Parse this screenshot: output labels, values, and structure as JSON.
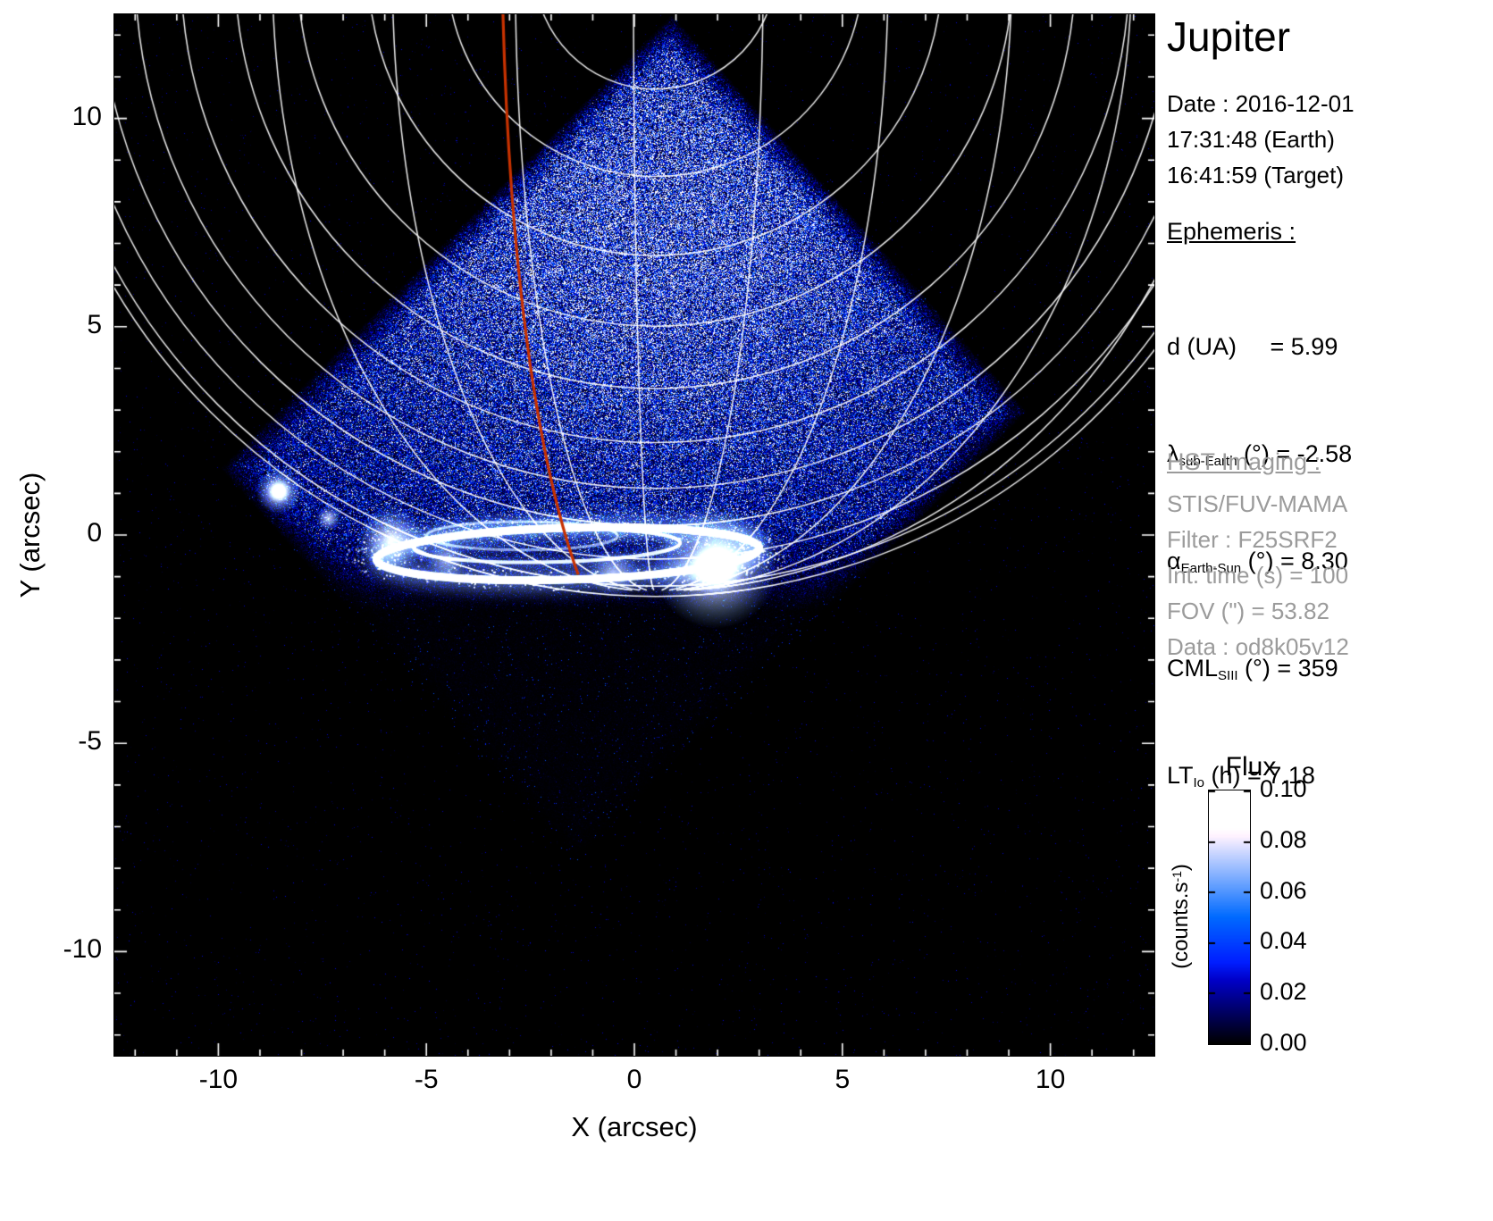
{
  "panel": {
    "title": "Jupiter",
    "date_lines": [
      "Date : 2016-12-01",
      "17:31:48 (Earth)",
      "16:41:59 (Target)"
    ],
    "ephemeris_heading": "Ephemeris :",
    "ephemeris_lines": [
      {
        "pre": "d (UA)",
        "sub": "",
        "post": "     = 5.99"
      },
      {
        "pre": "λ",
        "sub": "sub-Earth",
        "post": " (°) = -2.58"
      },
      {
        "pre": "α",
        "sub": "Earth-Sun",
        "post": " (°) = 8.30"
      },
      {
        "pre": "CML",
        "sub": "SIII",
        "post": " (°) = 359"
      },
      {
        "pre": "LT",
        "sub": "Io",
        "post": " (h) = 7.18"
      }
    ],
    "hst_heading": "HST Imaging :",
    "hst_lines": [
      "STIS/FUV-MAMA",
      "Filter : F25SRF2",
      "Int. time (s) = 100",
      "FOV (\") = 53.82",
      "Data : od8k05v12"
    ]
  },
  "axes": {
    "xlabel": "X (arcsec)",
    "ylabel": "Y (arcsec)"
  },
  "colorbar": {
    "title": "Flux",
    "unit_pre": "(counts.s",
    "unit_sup": "-1",
    "unit_post": ")",
    "tick_labels": [
      "0.10",
      "0.08",
      "0.06",
      "0.04",
      "0.02",
      "0.00"
    ]
  },
  "chart_data": {
    "type": "heatmap",
    "title": "Jupiter",
    "xlabel": "X (arcsec)",
    "ylabel": "Y (arcsec)",
    "xlim": [
      -12.5,
      12.5
    ],
    "ylim": [
      -12.5,
      12.5
    ],
    "x_ticks": [
      -10,
      -5,
      0,
      5,
      10
    ],
    "y_ticks": [
      -10,
      -5,
      0,
      5,
      10
    ],
    "flux_range": [
      0,
      0.1
    ],
    "flux_ticks": [
      0.0,
      0.02,
      0.04,
      0.06,
      0.08,
      0.1
    ],
    "colorbar_label": "Flux (counts.s-1)",
    "features": [
      "diamond-shaped STIS FUV-MAMA image footprint filled with photon noise",
      "white planetary latitude-longitude graticule converging at the pole near the limb",
      "bright northern auroral oval emission near y = 0 to -1 arcsec",
      "Io footprint bright spot near (-8.5, 1.0) arcsec",
      "red footpath track crossing the disk from top to the auroral region"
    ],
    "render": {
      "bg": "#000000",
      "diamond": [
        [
          0.9,
          12.5
        ],
        [
          9.45,
          2.96
        ],
        [
          -1.4,
          -7.94
        ],
        [
          -9.95,
          1.6
        ]
      ],
      "glow": {
        "cx": 0.6,
        "cy": 7.2,
        "sx": 4.8,
        "sy": 3.9,
        "base": 0.02,
        "peak": 0.034
      },
      "edge_fade": 0.7,
      "vert_fade": {
        "y0": -1.9,
        "span": 2.3,
        "floor": 0.04
      },
      "grid": {
        "cx": 0.5,
        "cy": 13.6,
        "R": 14.95,
        "lat_radii": [
          15.1,
          14.85,
          14.2,
          13.4,
          12.5,
          11.4,
          10.1,
          8.6,
          6.9,
          5.0,
          2.9
        ],
        "meridians": [
          -38,
          -25,
          -13,
          -2,
          10,
          22,
          35,
          50,
          68
        ],
        "color": "rgba(255,255,255,0.92)"
      },
      "aurora": {
        "main_oval": {
          "cx": -1.6,
          "cy": -0.45,
          "rx": 4.6,
          "ry": 0.62
        },
        "inner_oval": {
          "cx": -2.1,
          "cy": -0.25,
          "rx": 3.2,
          "ry": 0.4
        },
        "inner_oval2": {
          "cx": -2.7,
          "cy": -0.02,
          "rx": 2.3,
          "ry": 0.34
        },
        "blobs": [
          [
            1.95,
            -0.75,
            1.5,
            1.0
          ],
          [
            1.95,
            -0.75,
            0.7,
            1.0
          ],
          [
            -5.85,
            -0.1,
            0.8,
            0.9
          ],
          [
            -8.55,
            1.05,
            0.55,
            1.0
          ],
          [
            -8.55,
            1.05,
            0.3,
            1.0
          ],
          [
            -7.35,
            0.4,
            0.3,
            0.8
          ],
          [
            -4.5,
            -0.6,
            0.5,
            0.5
          ],
          [
            -0.5,
            -0.9,
            0.6,
            0.5
          ]
        ],
        "speckles": 520
      },
      "track": {
        "color": "#c83200",
        "points": [
          [
            -3.16,
            12.55
          ],
          [
            -3.0,
            6.5
          ],
          [
            -2.35,
            1.8
          ],
          [
            -1.35,
            -0.95
          ]
        ]
      }
    }
  }
}
